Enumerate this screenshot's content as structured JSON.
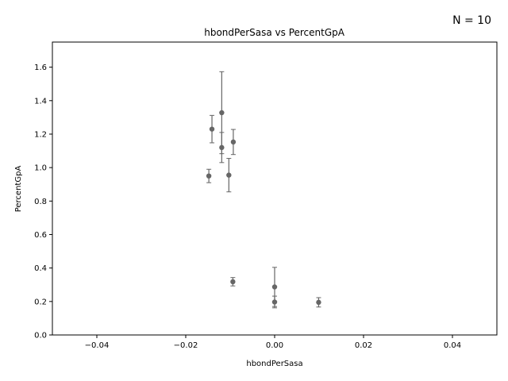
{
  "chart_data": {
    "type": "scatter",
    "title": "hbondPerSasa vs PercentGpA",
    "xlabel": "hbondPerSasa",
    "ylabel": "PercentGpA",
    "annotation": "N = 10",
    "xlim": [
      -0.05,
      0.05
    ],
    "ylim": [
      0.0,
      1.75
    ],
    "xticks": [
      -0.04,
      -0.02,
      0.0,
      0.02,
      0.04
    ],
    "xtick_labels": [
      "−0.04",
      "−0.02",
      "0.00",
      "0.02",
      "0.04"
    ],
    "yticks": [
      0.0,
      0.2,
      0.4,
      0.6,
      0.8,
      1.0,
      1.2,
      1.4,
      1.6
    ],
    "ytick_labels": [
      "0.0",
      "0.2",
      "0.4",
      "0.6",
      "0.8",
      "1.0",
      "1.2",
      "1.4",
      "1.6"
    ],
    "grid": false,
    "marker_color": "#666666",
    "points": [
      {
        "x": -0.0148,
        "y": 0.95,
        "err": 0.04
      },
      {
        "x": -0.0141,
        "y": 1.23,
        "err": 0.082
      },
      {
        "x": -0.0119,
        "y": 1.328,
        "err": 0.245
      },
      {
        "x": -0.0119,
        "y": 1.12,
        "err": 0.09
      },
      {
        "x": -0.0103,
        "y": 0.955,
        "err": 0.1
      },
      {
        "x": -0.0093,
        "y": 1.153,
        "err": 0.075
      },
      {
        "x": -0.0094,
        "y": 0.318,
        "err": 0.025
      },
      {
        "x": 0.0,
        "y": 0.287,
        "err": 0.117
      },
      {
        "x": 0.0,
        "y": 0.197,
        "err": 0.035
      },
      {
        "x": 0.0099,
        "y": 0.195,
        "err": 0.028
      }
    ]
  }
}
